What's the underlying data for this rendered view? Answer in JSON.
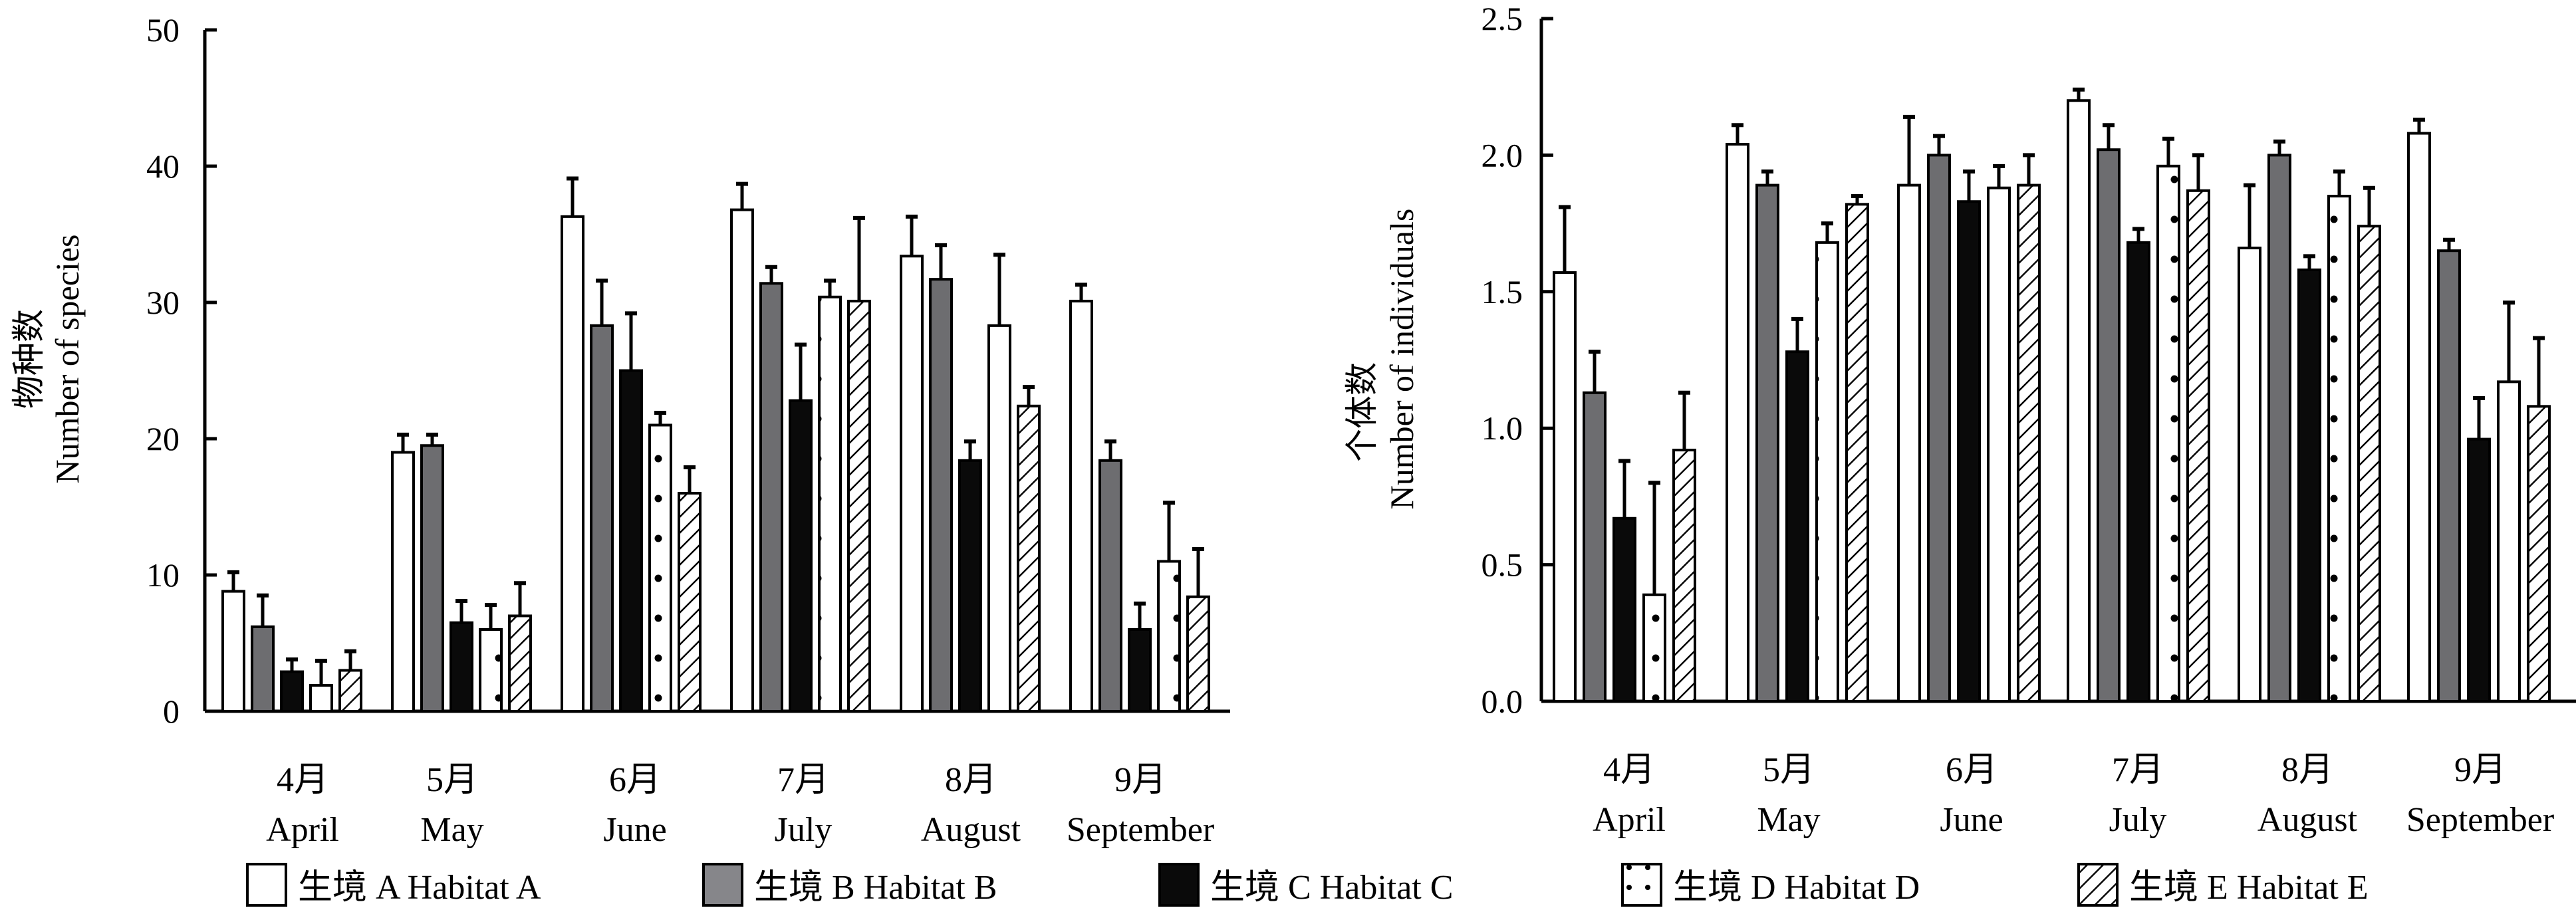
{
  "legend": {
    "items": [
      {
        "label": "生境 A Habitat A",
        "pattern": "white"
      },
      {
        "label": "生境 B Habitat B",
        "pattern": "gray"
      },
      {
        "label": "生境 C Habitat C",
        "pattern": "black"
      },
      {
        "label": "生境 D Habitat D",
        "pattern": "dots"
      },
      {
        "label": "生境 E Habitat E",
        "pattern": "hatch"
      }
    ]
  },
  "colors": {
    "habitat_a": "#ffffff",
    "habitat_b": "#6d6d70",
    "habitat_c": "#0a0a0a",
    "habitat_d": "#ffffff",
    "habitat_e": "#ffffff",
    "stroke": "#000000"
  },
  "chart_data": [
    {
      "type": "bar",
      "title": "",
      "ylabel_cn": "物种数",
      "ylabel": "Number of species",
      "xlabel": "",
      "ylim": [
        0,
        50
      ],
      "yticks": [
        0,
        10,
        20,
        30,
        40,
        50
      ],
      "ytick_labels": [
        "0",
        "10",
        "20",
        "30",
        "40",
        "50"
      ],
      "grid": false,
      "legend_position": "bottom",
      "categories": [
        {
          "cn": "4月",
          "en": "April"
        },
        {
          "cn": "5月",
          "en": "May"
        },
        {
          "cn": "6月",
          "en": "June"
        },
        {
          "cn": "7月",
          "en": "July"
        },
        {
          "cn": "8月",
          "en": "August"
        },
        {
          "cn": "9月",
          "en": "September"
        }
      ],
      "series": [
        {
          "name": "生境 A Habitat A",
          "values": [
            8.8,
            19.0,
            36.3,
            36.8,
            33.4,
            30.1
          ],
          "error_top": [
            10.2,
            20.3,
            39.1,
            38.7,
            36.3,
            31.3
          ]
        },
        {
          "name": "生境 B Habitat B",
          "values": [
            6.2,
            19.5,
            28.3,
            31.4,
            31.7,
            18.4
          ],
          "error_top": [
            8.5,
            20.3,
            31.6,
            32.6,
            34.2,
            19.8
          ]
        },
        {
          "name": "生境 C Habitat C",
          "values": [
            2.9,
            6.5,
            25.0,
            22.8,
            18.4,
            6.0
          ],
          "error_top": [
            3.8,
            8.1,
            29.2,
            26.9,
            19.8,
            7.9
          ]
        },
        {
          "name": "生境 D Habitat D",
          "values": [
            1.9,
            6.0,
            21.0,
            30.4,
            28.3,
            11.0
          ],
          "error_top": [
            3.7,
            7.8,
            21.9,
            31.6,
            33.5,
            15.3
          ]
        },
        {
          "name": "生境 E Habitat E",
          "values": [
            3.0,
            7.0,
            16.0,
            30.1,
            22.4,
            8.4
          ],
          "error_top": [
            4.4,
            9.4,
            17.9,
            36.2,
            23.8,
            11.9
          ]
        }
      ]
    },
    {
      "type": "bar",
      "title": "",
      "ylabel_cn": "个体数",
      "ylabel": "Number of individuals",
      "xlabel": "",
      "ylim": [
        0,
        2.5
      ],
      "yticks": [
        0,
        0.5,
        1.0,
        1.5,
        2.0,
        2.5
      ],
      "ytick_labels": [
        "0.0",
        "0.5",
        "1.0",
        "1.5",
        "2.0",
        "2.5"
      ],
      "grid": false,
      "legend_position": "bottom",
      "categories": [
        {
          "cn": "4月",
          "en": "April"
        },
        {
          "cn": "5月",
          "en": "May"
        },
        {
          "cn": "6月",
          "en": "June"
        },
        {
          "cn": "7月",
          "en": "July"
        },
        {
          "cn": "8月",
          "en": "August"
        },
        {
          "cn": "9月",
          "en": "September"
        }
      ],
      "series": [
        {
          "name": "生境 A Habitat A",
          "values": [
            1.57,
            2.04,
            1.89,
            2.2,
            1.66,
            2.08
          ],
          "error_top": [
            1.81,
            2.11,
            2.14,
            2.24,
            1.89,
            2.13
          ]
        },
        {
          "name": "生境 B Habitat B",
          "values": [
            1.13,
            1.89,
            2.0,
            2.02,
            2.0,
            1.65
          ],
          "error_top": [
            1.28,
            1.94,
            2.07,
            2.11,
            2.05,
            1.69
          ]
        },
        {
          "name": "生境 C Habitat C",
          "values": [
            0.67,
            1.28,
            1.83,
            1.68,
            1.58,
            0.96
          ],
          "error_top": [
            0.88,
            1.4,
            1.94,
            1.73,
            1.63,
            1.11
          ]
        },
        {
          "name": "生境 D Habitat D",
          "values": [
            0.39,
            1.68,
            1.88,
            1.96,
            1.85,
            1.17
          ],
          "error_top": [
            0.8,
            1.75,
            1.96,
            2.06,
            1.94,
            1.46
          ]
        },
        {
          "name": "生境 E Habitat E",
          "values": [
            0.92,
            1.82,
            1.89,
            1.87,
            1.74,
            1.08
          ],
          "error_top": [
            1.13,
            1.85,
            2.0,
            2.0,
            1.88,
            1.33
          ]
        }
      ]
    }
  ]
}
